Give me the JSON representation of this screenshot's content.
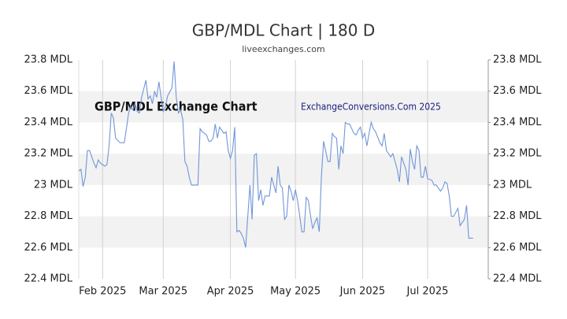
{
  "chart_data": {
    "type": "line",
    "title": "GBP/MDL Chart | 180 D",
    "subtitle": "liveexchanges.com",
    "annotations": [
      "GBP/MDL Exchange Chart",
      "ExchangeConversions.Com 2025"
    ],
    "x": [
      0,
      1,
      2,
      3,
      4,
      5,
      7,
      8,
      9,
      10,
      11,
      12,
      13,
      14,
      15,
      16,
      17,
      19,
      20,
      21,
      22,
      23,
      24,
      25,
      26,
      27,
      28,
      29,
      31,
      32,
      33,
      34,
      35,
      36,
      37,
      38,
      39,
      40,
      41,
      43,
      44,
      45,
      46,
      47,
      48,
      49,
      50,
      51,
      52,
      53,
      55,
      56,
      57,
      58,
      59,
      60,
      61,
      62,
      63,
      64,
      65,
      67,
      68,
      69,
      70,
      71,
      72,
      73,
      74,
      75,
      76,
      77,
      79,
      80,
      81,
      82,
      83,
      84,
      85,
      86,
      87,
      88,
      89,
      91,
      92,
      93,
      94,
      95,
      96,
      97,
      98,
      99,
      100,
      101,
      103,
      104,
      105,
      106,
      107,
      108,
      109,
      110,
      111,
      112,
      113,
      115,
      116,
      117,
      118,
      119,
      120,
      121,
      122,
      123,
      124,
      125,
      127,
      128,
      129,
      130,
      131,
      132,
      133,
      134,
      135,
      136,
      137,
      139,
      140,
      141,
      142,
      143,
      144,
      145,
      146,
      147,
      148,
      149,
      151,
      152,
      153,
      154,
      155,
      156,
      157,
      158,
      159,
      160,
      161,
      163,
      164,
      165,
      166,
      167,
      168,
      169,
      170,
      171,
      172,
      173,
      175,
      176,
      177,
      178,
      179,
      180,
      181,
      182
    ],
    "series": [
      {
        "name": "GBP/MDL",
        "color": "#7096d8",
        "values": [
          23.09,
          23.1,
          22.99,
          23.05,
          23.22,
          23.22,
          23.14,
          23.11,
          23.16,
          23.14,
          23.13,
          23.12,
          23.13,
          23.25,
          23.46,
          23.43,
          23.3,
          23.27,
          23.27,
          23.27,
          23.36,
          23.46,
          23.5,
          23.48,
          23.52,
          23.47,
          23.46,
          23.56,
          23.67,
          23.55,
          23.57,
          23.52,
          23.6,
          23.56,
          23.66,
          23.56,
          23.47,
          23.5,
          23.57,
          23.62,
          23.79,
          23.56,
          23.46,
          23.48,
          23.42,
          23.15,
          23.12,
          23.05,
          23.0,
          23.0,
          23.0,
          23.36,
          23.34,
          23.33,
          23.32,
          23.28,
          23.28,
          23.3,
          23.39,
          23.3,
          23.37,
          23.33,
          23.34,
          23.22,
          23.17,
          23.22,
          23.37,
          22.7,
          22.71,
          22.69,
          22.66,
          22.6,
          23.0,
          22.78,
          23.19,
          23.2,
          22.9,
          22.97,
          22.87,
          22.93,
          22.93,
          22.93,
          23.05,
          22.95,
          23.12,
          23.0,
          22.98,
          22.78,
          22.8,
          23.0,
          22.96,
          22.9,
          22.97,
          22.9,
          22.7,
          22.7,
          22.92,
          22.9,
          22.8,
          22.72,
          22.76,
          22.79,
          22.7,
          23.05,
          23.28,
          23.15,
          23.15,
          23.33,
          23.31,
          23.3,
          23.1,
          23.25,
          23.2,
          23.4,
          23.39,
          23.39,
          23.33,
          23.32,
          23.35,
          23.37,
          23.3,
          23.33,
          23.25,
          23.33,
          23.4,
          23.36,
          23.34,
          23.27,
          23.25,
          23.33,
          23.22,
          23.2,
          23.18,
          23.2,
          23.15,
          23.1,
          23.02,
          23.18,
          23.1,
          23.0,
          23.23,
          23.15,
          23.1,
          23.25,
          23.22,
          23.05,
          23.05,
          23.12,
          23.04,
          23.03,
          23.0,
          23.0,
          22.98,
          22.96,
          22.98,
          23.02,
          23.01,
          22.93,
          22.8,
          22.8,
          22.85,
          22.74,
          22.76,
          22.78,
          22.87,
          22.66,
          22.66,
          22.66
        ]
      }
    ],
    "xlim": [
      0,
      189
    ],
    "xticks": [
      {
        "value": 11,
        "label": "Feb 2025"
      },
      {
        "value": 39,
        "label": "Mar 2025"
      },
      {
        "value": 70,
        "label": "Apr 2025"
      },
      {
        "value": 100,
        "label": "May 2025"
      },
      {
        "value": 131,
        "label": "Jun 2025"
      },
      {
        "value": 161,
        "label": "Jul 2025"
      }
    ],
    "ylim": [
      22.4,
      23.8
    ],
    "yticks": [
      {
        "value": 22.4,
        "label": "22.4 MDL"
      },
      {
        "value": 22.6,
        "label": "22.6 MDL"
      },
      {
        "value": 22.8,
        "label": "22.8 MDL"
      },
      {
        "value": 23,
        "label": "23 MDL"
      },
      {
        "value": 23.2,
        "label": "23.2 MDL"
      },
      {
        "value": 23.4,
        "label": "23.4 MDL"
      },
      {
        "value": 23.6,
        "label": "23.6 MDL"
      },
      {
        "value": 23.8,
        "label": "23.8 MDL"
      }
    ],
    "grid": true
  }
}
